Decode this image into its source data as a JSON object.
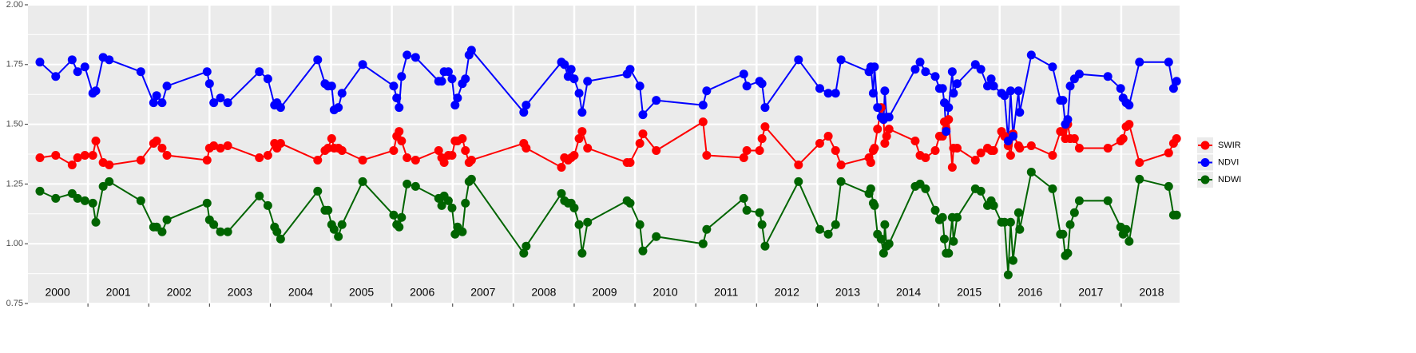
{
  "chart_data": {
    "type": "line",
    "x": [
      2000.21,
      2000.47,
      2000.74,
      2000.83,
      2000.95,
      2001.08,
      2001.13,
      2001.25,
      2001.35,
      2001.87,
      2002.08,
      2002.13,
      2002.22,
      2002.3,
      2002.96,
      2003.0,
      2003.07,
      2003.18,
      2003.3,
      2003.82,
      2003.96,
      2004.07,
      2004.11,
      2004.17,
      2004.78,
      2004.9,
      2004.95,
      2005.01,
      2005.05,
      2005.12,
      2005.18,
      2005.52,
      2006.03,
      2006.08,
      2006.12,
      2006.16,
      2006.25,
      2006.39,
      2006.77,
      2006.82,
      2006.86,
      2006.93,
      2006.99,
      2007.04,
      2007.08,
      2007.16,
      2007.21,
      2007.27,
      2007.31,
      2008.17,
      2008.21,
      2008.79,
      2008.84,
      2008.9,
      2008.95,
      2009.0,
      2009.08,
      2009.13,
      2009.22,
      2009.87,
      2009.92,
      2010.08,
      2010.13,
      2010.35,
      2011.12,
      2011.18,
      2011.79,
      2011.84,
      2012.05,
      2012.09,
      2012.14,
      2012.69,
      2013.04,
      2013.18,
      2013.3,
      2013.39,
      2013.85,
      2013.88,
      2013.92,
      2013.94,
      2013.99,
      2014.05,
      2014.09,
      2014.11,
      2014.14,
      2014.18,
      2014.61,
      2014.69,
      2014.78,
      2014.94,
      2015.01,
      2015.06,
      2015.09,
      2015.12,
      2015.16,
      2015.22,
      2015.24,
      2015.3,
      2015.6,
      2015.69,
      2015.8,
      2015.86,
      2015.9,
      2016.03,
      2016.08,
      2016.14,
      2016.18,
      2016.22,
      2016.31,
      2016.33,
      2016.52,
      2016.87,
      2017.0,
      2017.04,
      2017.08,
      2017.12,
      2017.16,
      2017.23,
      2017.31,
      2017.78,
      2017.99,
      2018.03,
      2018.08,
      2018.13,
      2018.3,
      2018.78,
      2018.86,
      2018.91
    ],
    "series": [
      {
        "name": "SWIR",
        "color": "#ff0000",
        "values": [
          1.36,
          1.37,
          1.33,
          1.36,
          1.37,
          1.37,
          1.43,
          1.34,
          1.33,
          1.35,
          1.42,
          1.43,
          1.4,
          1.37,
          1.35,
          1.4,
          1.41,
          1.4,
          1.41,
          1.36,
          1.37,
          1.42,
          1.4,
          1.42,
          1.35,
          1.39,
          1.4,
          1.44,
          1.4,
          1.4,
          1.39,
          1.35,
          1.39,
          1.45,
          1.47,
          1.43,
          1.36,
          1.35,
          1.39,
          1.36,
          1.34,
          1.37,
          1.37,
          1.43,
          1.43,
          1.44,
          1.39,
          1.34,
          1.35,
          1.42,
          1.4,
          1.32,
          1.36,
          1.35,
          1.36,
          1.37,
          1.44,
          1.47,
          1.4,
          1.34,
          1.34,
          1.42,
          1.46,
          1.39,
          1.51,
          1.37,
          1.36,
          1.39,
          1.39,
          1.44,
          1.49,
          1.33,
          1.42,
          1.45,
          1.39,
          1.33,
          1.36,
          1.34,
          1.39,
          1.4,
          1.48,
          1.57,
          1.52,
          1.42,
          1.45,
          1.48,
          1.43,
          1.37,
          1.36,
          1.39,
          1.45,
          1.45,
          1.51,
          1.48,
          1.52,
          1.32,
          1.4,
          1.4,
          1.35,
          1.38,
          1.4,
          1.39,
          1.39,
          1.47,
          1.45,
          1.41,
          1.37,
          1.46,
          1.41,
          1.4,
          1.41,
          1.37,
          1.47,
          1.47,
          1.44,
          1.5,
          1.44,
          1.44,
          1.4,
          1.4,
          1.43,
          1.44,
          1.49,
          1.5,
          1.34,
          1.38,
          1.42,
          1.44
        ]
      },
      {
        "name": "NDVI",
        "color": "#0000ff",
        "values": [
          1.76,
          1.7,
          1.77,
          1.72,
          1.74,
          1.63,
          1.64,
          1.78,
          1.77,
          1.72,
          1.59,
          1.62,
          1.59,
          1.66,
          1.72,
          1.67,
          1.59,
          1.61,
          1.59,
          1.72,
          1.69,
          1.58,
          1.59,
          1.57,
          1.77,
          1.67,
          1.66,
          1.66,
          1.56,
          1.57,
          1.63,
          1.75,
          1.66,
          1.61,
          1.57,
          1.7,
          1.79,
          1.78,
          1.68,
          1.68,
          1.72,
          1.72,
          1.69,
          1.58,
          1.61,
          1.67,
          1.69,
          1.79,
          1.81,
          1.55,
          1.58,
          1.76,
          1.75,
          1.7,
          1.73,
          1.69,
          1.63,
          1.55,
          1.68,
          1.71,
          1.73,
          1.66,
          1.54,
          1.6,
          1.58,
          1.64,
          1.71,
          1.66,
          1.68,
          1.67,
          1.57,
          1.77,
          1.65,
          1.63,
          1.63,
          1.77,
          1.72,
          1.74,
          1.63,
          1.74,
          1.57,
          1.53,
          1.52,
          1.64,
          1.53,
          1.53,
          1.73,
          1.76,
          1.72,
          1.7,
          1.65,
          1.65,
          1.59,
          1.47,
          1.57,
          1.72,
          1.63,
          1.67,
          1.75,
          1.73,
          1.66,
          1.69,
          1.66,
          1.63,
          1.62,
          1.43,
          1.64,
          1.45,
          1.64,
          1.55,
          1.79,
          1.74,
          1.6,
          1.6,
          1.5,
          1.52,
          1.66,
          1.69,
          1.71,
          1.7,
          1.65,
          1.61,
          1.59,
          1.58,
          1.76,
          1.76,
          1.65,
          1.68
        ]
      },
      {
        "name": "NDWI",
        "color": "#006400",
        "values": [
          1.22,
          1.19,
          1.21,
          1.19,
          1.18,
          1.17,
          1.09,
          1.24,
          1.26,
          1.18,
          1.07,
          1.07,
          1.05,
          1.1,
          1.17,
          1.1,
          1.08,
          1.05,
          1.05,
          1.2,
          1.16,
          1.07,
          1.05,
          1.02,
          1.22,
          1.14,
          1.14,
          1.08,
          1.06,
          1.03,
          1.08,
          1.26,
          1.12,
          1.08,
          1.07,
          1.11,
          1.25,
          1.24,
          1.19,
          1.16,
          1.2,
          1.18,
          1.15,
          1.04,
          1.07,
          1.05,
          1.17,
          1.26,
          1.27,
          0.96,
          0.99,
          1.21,
          1.18,
          1.17,
          1.17,
          1.15,
          1.08,
          0.96,
          1.09,
          1.18,
          1.17,
          1.08,
          0.97,
          1.03,
          1.0,
          1.06,
          1.19,
          1.14,
          1.13,
          1.08,
          0.99,
          1.26,
          1.06,
          1.04,
          1.08,
          1.26,
          1.21,
          1.23,
          1.17,
          1.16,
          1.04,
          1.02,
          0.96,
          1.08,
          0.99,
          1.0,
          1.24,
          1.25,
          1.23,
          1.14,
          1.1,
          1.11,
          1.02,
          0.96,
          0.96,
          1.11,
          1.01,
          1.11,
          1.23,
          1.22,
          1.16,
          1.18,
          1.16,
          1.09,
          1.09,
          0.87,
          1.09,
          0.93,
          1.13,
          1.06,
          1.3,
          1.23,
          1.04,
          1.04,
          0.95,
          0.96,
          1.08,
          1.13,
          1.18,
          1.18,
          1.07,
          1.04,
          1.06,
          1.01,
          1.27,
          1.24,
          1.12,
          1.12
        ]
      }
    ],
    "xlim": [
      2000,
      2018.96
    ],
    "xticks": [
      2001,
      2002,
      2003,
      2004,
      2005,
      2006,
      2007,
      2008,
      2009,
      2010,
      2011,
      2012,
      2013,
      2014,
      2015,
      2016,
      2017,
      2018
    ],
    "ylim": [
      0.75,
      2.0
    ],
    "yticks": [
      {
        "value": 0.75,
        "label": "0.75"
      },
      {
        "value": 1.0,
        "label": "1.00"
      },
      {
        "value": 1.25,
        "label": "1.25"
      },
      {
        "value": 1.5,
        "label": "1.50"
      },
      {
        "value": 1.75,
        "label": "1.75"
      },
      {
        "value": 2.0,
        "label": "2.00"
      }
    ],
    "annotations": [
      {
        "x": 2000.5,
        "text": "2000"
      },
      {
        "x": 2001.5,
        "text": "2001"
      },
      {
        "x": 2002.5,
        "text": "2002"
      },
      {
        "x": 2003.5,
        "text": "2003"
      },
      {
        "x": 2004.5,
        "text": "2004"
      },
      {
        "x": 2005.5,
        "text": "2005"
      },
      {
        "x": 2006.5,
        "text": "2006"
      },
      {
        "x": 2007.5,
        "text": "2007"
      },
      {
        "x": 2008.5,
        "text": "2008"
      },
      {
        "x": 2009.5,
        "text": "2009"
      },
      {
        "x": 2010.5,
        "text": "2010"
      },
      {
        "x": 2011.5,
        "text": "2011"
      },
      {
        "x": 2012.5,
        "text": "2012"
      },
      {
        "x": 2013.5,
        "text": "2013"
      },
      {
        "x": 2014.5,
        "text": "2014"
      },
      {
        "x": 2015.5,
        "text": "2015"
      },
      {
        "x": 2016.5,
        "text": "2016"
      },
      {
        "x": 2017.5,
        "text": "2017"
      },
      {
        "x": 2018.5,
        "text": "2018"
      }
    ],
    "grid": true,
    "legend": "right"
  }
}
